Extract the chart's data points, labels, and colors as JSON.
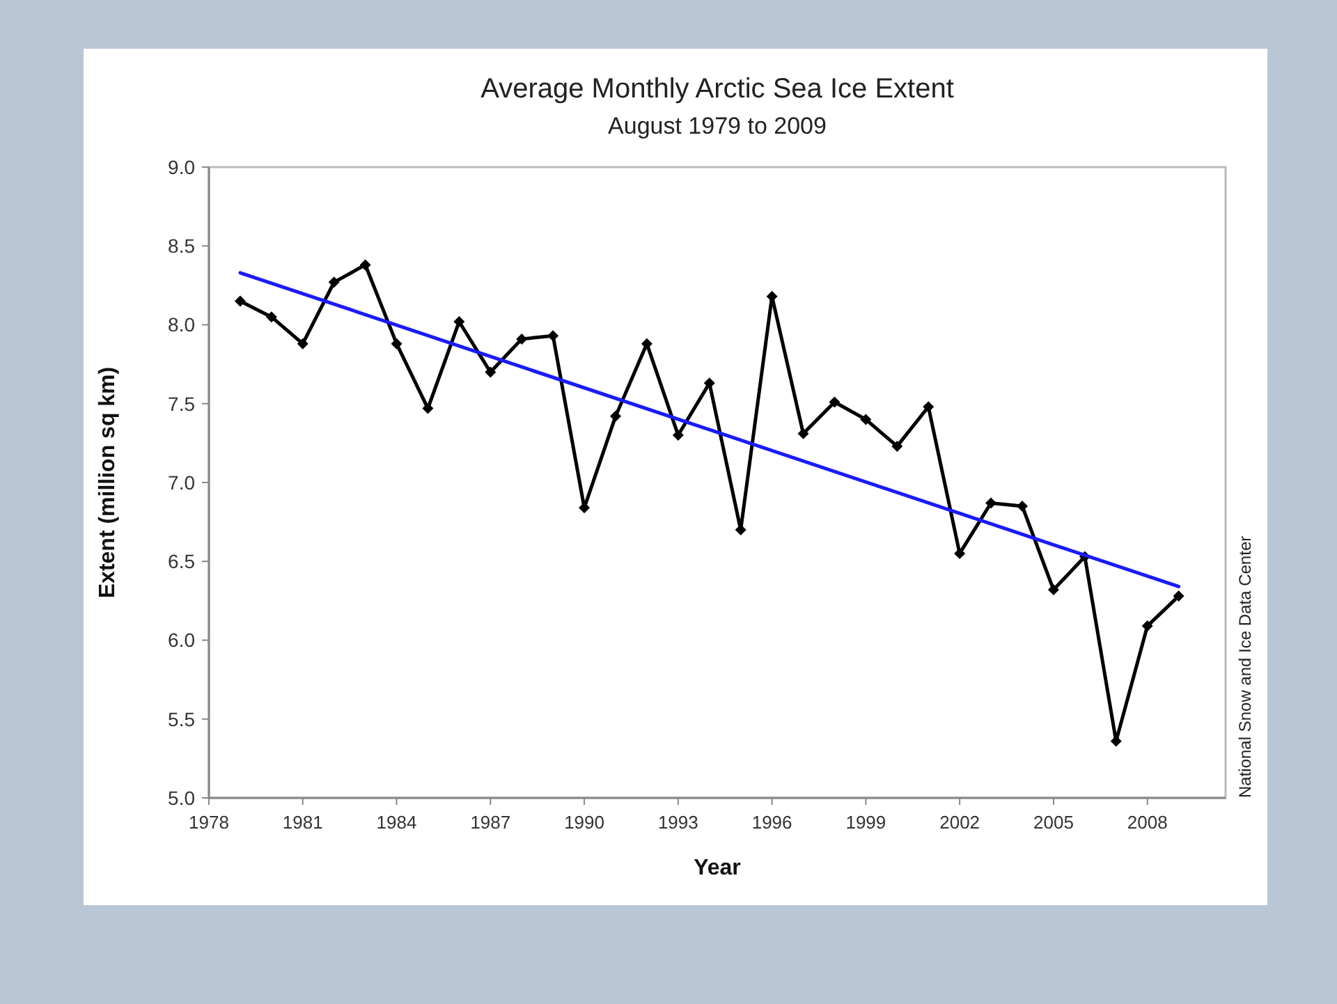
{
  "chart_data": {
    "type": "line",
    "title": "Average Monthly Arctic Sea Ice Extent",
    "subtitle": "August 1979 to 2009",
    "xlabel": "Year",
    "ylabel": "Extent (million sq km)",
    "annotations": [
      "National Snow and Ice Data Center"
    ],
    "x": [
      1979,
      1980,
      1981,
      1982,
      1983,
      1984,
      1985,
      1986,
      1987,
      1988,
      1989,
      1990,
      1991,
      1992,
      1993,
      1994,
      1995,
      1996,
      1997,
      1998,
      1999,
      2000,
      2001,
      2002,
      2003,
      2004,
      2005,
      2006,
      2007,
      2008,
      2009
    ],
    "series": [
      {
        "color": "#000000",
        "marker": "diamond",
        "values": [
          8.15,
          8.05,
          7.88,
          8.27,
          8.38,
          7.88,
          7.47,
          8.02,
          7.7,
          7.91,
          7.93,
          6.84,
          7.42,
          7.88,
          7.3,
          7.63,
          6.7,
          8.18,
          7.31,
          7.51,
          7.4,
          7.23,
          7.48,
          6.55,
          6.87,
          6.85,
          6.32,
          6.53,
          5.36,
          6.09,
          6.28
        ]
      },
      {
        "type": "line",
        "color": "#1a1aff",
        "marker": "none",
        "x": [
          1979,
          2009
        ],
        "values": [
          8.33,
          6.34
        ]
      }
    ],
    "xlim": [
      1978,
      2010.5
    ],
    "xticks": [
      1978,
      1981,
      1984,
      1987,
      1990,
      1993,
      1996,
      1999,
      2002,
      2005,
      2008
    ],
    "ylim": [
      5,
      9
    ],
    "yticks": [
      {
        "value": 5,
        "label": "5.0"
      },
      {
        "value": 5.5,
        "label": "5.5"
      },
      {
        "value": 6,
        "label": "6.0"
      },
      {
        "value": 6.5,
        "label": "6.5"
      },
      {
        "value": 7,
        "label": "7.0"
      },
      {
        "value": 7.5,
        "label": "7.5"
      },
      {
        "value": 8,
        "label": "8.0"
      },
      {
        "value": 8.5,
        "label": "8.5"
      },
      {
        "value": 9,
        "label": "9.0"
      }
    ],
    "grid": false
  }
}
